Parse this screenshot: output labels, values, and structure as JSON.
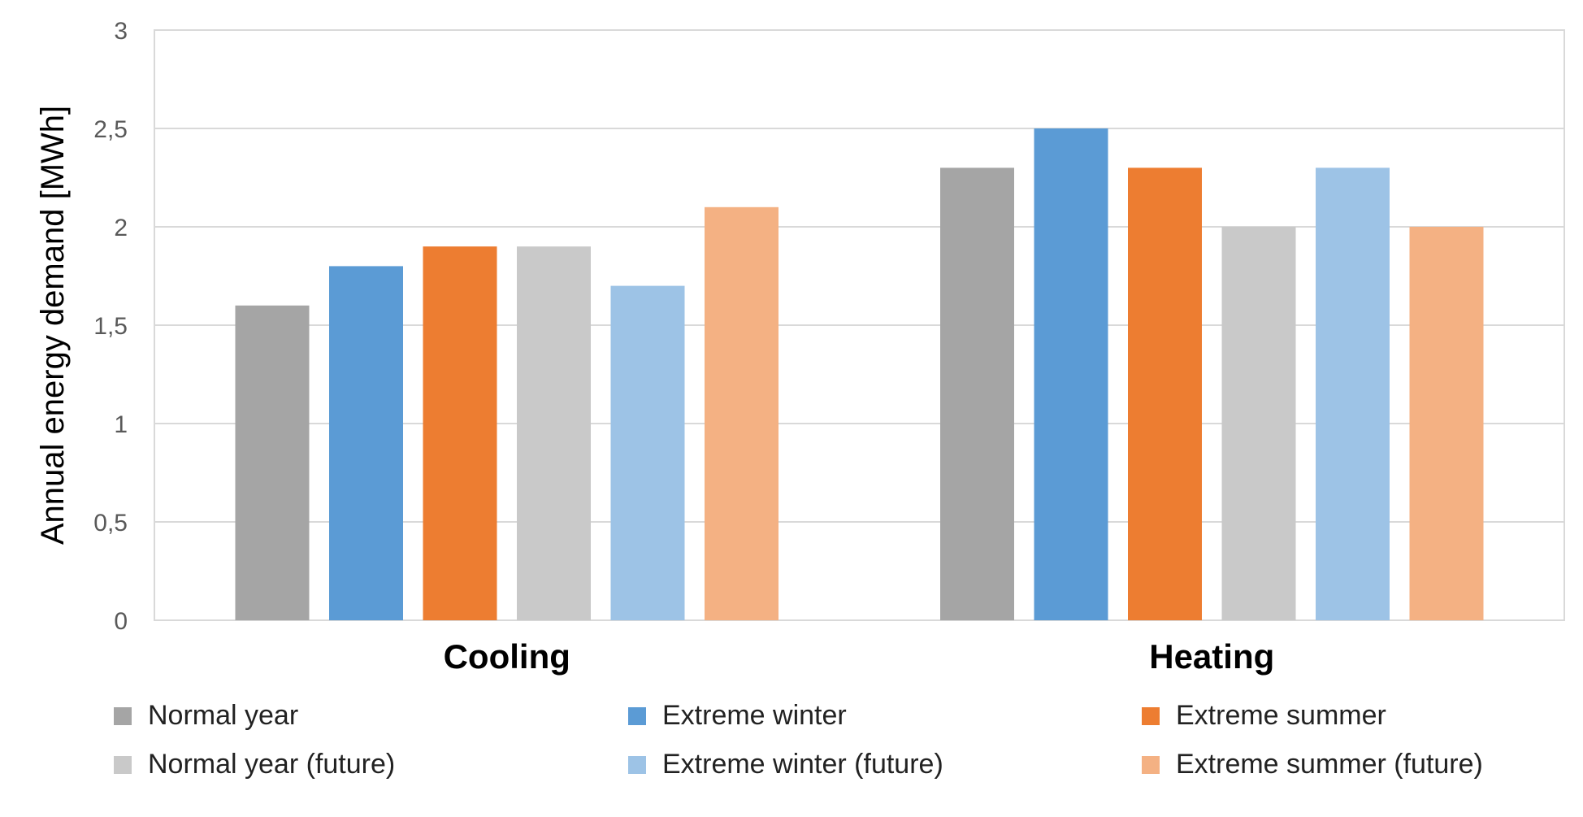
{
  "chart_data": {
    "type": "bar",
    "title": "",
    "xlabel": "",
    "ylabel": "Annual energy demand [MWh]",
    "categories": [
      "Cooling",
      "Heating"
    ],
    "ylim": [
      0,
      3
    ],
    "yticks": [
      {
        "value": 0,
        "label": "0"
      },
      {
        "value": 0.5,
        "label": "0,5"
      },
      {
        "value": 1,
        "label": "1"
      },
      {
        "value": 1.5,
        "label": "1,5"
      },
      {
        "value": 2,
        "label": "2"
      },
      {
        "value": 2.5,
        "label": "2,5"
      },
      {
        "value": 3,
        "label": "3"
      }
    ],
    "grid": true,
    "legend_position": "bottom",
    "series": [
      {
        "name": "Normal year",
        "color": "#a5a5a5",
        "values": [
          1.6,
          2.3
        ]
      },
      {
        "name": "Extreme winter",
        "color": "#5b9bd5",
        "values": [
          1.8,
          2.5
        ]
      },
      {
        "name": "Extreme summer",
        "color": "#ed7d31",
        "values": [
          1.9,
          2.3
        ]
      },
      {
        "name": "Normal year (future)",
        "color": "#c9c9c9",
        "values": [
          1.9,
          2.0
        ]
      },
      {
        "name": "Extreme winter (future)",
        "color": "#9dc3e6",
        "values": [
          1.7,
          2.3
        ]
      },
      {
        "name": "Extreme summer (future)",
        "color": "#f4b183",
        "values": [
          2.1,
          2.0
        ]
      }
    ]
  }
}
